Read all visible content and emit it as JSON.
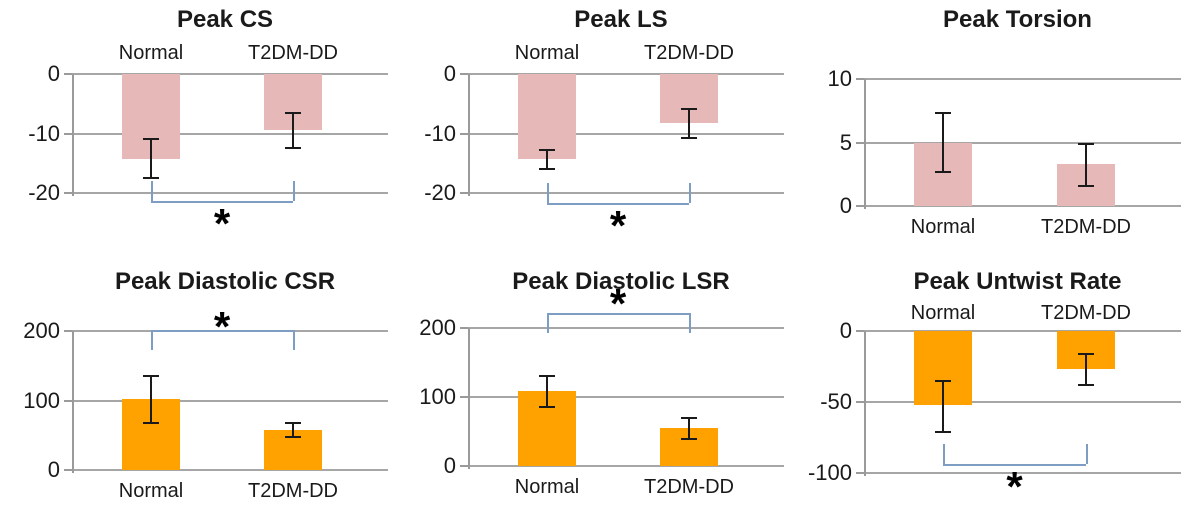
{
  "figure": {
    "background": "#ffffff",
    "grid_color": "#a6a6a6",
    "axis_color": "#9a9a9a",
    "bracket_color": "#7e9dc3",
    "error_bar_color": "#1a1a1a",
    "pink": "#e6b9b8",
    "orange": "#ffa200"
  },
  "chart_data": [
    {
      "type": "bar",
      "title": "Peak CS",
      "categories": [
        "Normal",
        "T2DM-DD"
      ],
      "values": [
        -14.3,
        -9.4
      ],
      "error_high": [
        -11.0,
        -6.5
      ],
      "error_low": [
        -17.5,
        -12.4
      ],
      "yticks": [
        0,
        -10,
        -20
      ],
      "ylim": [
        0,
        -20
      ],
      "bar_color": "#e6b9b8",
      "category_labels_position": "top",
      "grid": true,
      "significance": {
        "label": "*",
        "bracket_y": -21.4,
        "star_side": "below",
        "star_dy": 0
      }
    },
    {
      "type": "bar",
      "title": "Peak LS",
      "categories": [
        "Normal",
        "T2DM-DD"
      ],
      "values": [
        -14.3,
        -8.3
      ],
      "error_high": [
        -12.8,
        -5.8
      ],
      "error_low": [
        -15.9,
        -10.8
      ],
      "yticks": [
        0,
        -10,
        -20
      ],
      "ylim": [
        0,
        -20
      ],
      "bar_color": "#e6b9b8",
      "category_labels_position": "top",
      "grid": true,
      "significance": {
        "label": "*",
        "bracket_y": -21.6,
        "star_side": "below",
        "star_dy": 0
      }
    },
    {
      "type": "bar",
      "title": "Peak Torsion",
      "categories": [
        "Normal",
        "T2DM-DD"
      ],
      "values": [
        5.0,
        3.3
      ],
      "error_high": [
        7.3,
        4.9
      ],
      "error_low": [
        2.7,
        1.6
      ],
      "yticks": [
        10,
        5,
        0
      ],
      "ylim": [
        10,
        0
      ],
      "bar_color": "#e6b9b8",
      "category_labels_position": "bottom",
      "grid": true,
      "significance": null
    },
    {
      "type": "bar",
      "title": "Peak Diastolic CSR",
      "categories": [
        "Normal",
        "T2DM-DD"
      ],
      "values": [
        102,
        58
      ],
      "error_high": [
        135,
        68
      ],
      "error_low": [
        68,
        48
      ],
      "yticks": [
        200,
        100,
        0
      ],
      "ylim": [
        200,
        0
      ],
      "bar_color": "#ffa200",
      "category_labels_position": "bottom",
      "grid": true,
      "significance": {
        "label": "*",
        "bracket_y": 202,
        "star_side": "above",
        "star_dy": 24
      }
    },
    {
      "type": "bar",
      "title": "Peak Diastolic LSR",
      "categories": [
        "Normal",
        "T2DM-DD"
      ],
      "values": [
        108,
        55
      ],
      "error_high": [
        130,
        69
      ],
      "error_low": [
        86,
        39
      ],
      "yticks": [
        200,
        100,
        0
      ],
      "ylim": [
        200,
        0
      ],
      "bar_color": "#ffa200",
      "category_labels_position": "bottom",
      "grid": true,
      "significance": {
        "label": "*",
        "bracket_y": 222,
        "star_side": "above",
        "star_dy": 18
      }
    },
    {
      "type": "bar",
      "title": "Peak Untwist Rate",
      "categories": [
        "Normal",
        "T2DM-DD"
      ],
      "values": [
        -52,
        -27
      ],
      "error_high": [
        -35,
        -16
      ],
      "error_low": [
        -71,
        -38
      ],
      "yticks": [
        0,
        -50,
        -100
      ],
      "ylim": [
        0,
        -100
      ],
      "bar_color": "#ffa200",
      "category_labels_position": "top",
      "grid": true,
      "significance": {
        "label": "*",
        "bracket_y": -94,
        "star_side": "below",
        "star_dy": 0
      }
    }
  ]
}
